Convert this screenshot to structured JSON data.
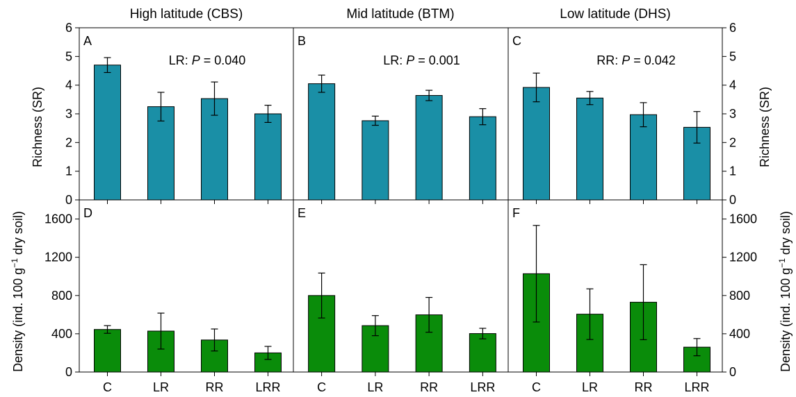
{
  "columns": [
    {
      "title": "High latitude (CBS)"
    },
    {
      "title": "Mid latitude (BTM)"
    },
    {
      "title": "Low latitude (DHS)"
    }
  ],
  "y_titles": {
    "top_left": "Richness (SR)",
    "top_right": "Richness (SR)",
    "bottom_left": "Density (ind. 100 g",
    "bottom_right": "Density (ind. 100 g",
    "sup": "−1",
    "tail": " dry soil)"
  },
  "colors": {
    "richness": "#1a8fa6",
    "density": "#0a8c0a",
    "frame": "#000000"
  },
  "chart_data": [
    {
      "panel": "A",
      "type": "bar",
      "annotation_label": "LR: ",
      "annotation_p": "P",
      "annotation_value": " = 0.040",
      "categories": [
        "C",
        "LR",
        "RR",
        "LRR"
      ],
      "values": [
        4.7,
        3.25,
        3.53,
        3.0
      ],
      "errors": [
        0.26,
        0.5,
        0.58,
        0.3
      ],
      "ylabel": "Richness (SR)",
      "ylim": [
        0,
        6
      ],
      "yticks": [
        "0",
        "1",
        "2",
        "3",
        "4",
        "5",
        "6"
      ]
    },
    {
      "panel": "B",
      "type": "bar",
      "annotation_label": "LR: ",
      "annotation_p": "P",
      "annotation_value": " = 0.001",
      "categories": [
        "C",
        "LR",
        "RR",
        "LRR"
      ],
      "values": [
        4.05,
        2.76,
        3.64,
        2.9
      ],
      "errors": [
        0.3,
        0.16,
        0.18,
        0.28
      ],
      "ylabel": "Richness (SR)",
      "ylim": [
        0,
        6
      ],
      "yticks": [
        "0",
        "1",
        "2",
        "3",
        "4",
        "5",
        "6"
      ]
    },
    {
      "panel": "C",
      "type": "bar",
      "annotation_label": "RR: ",
      "annotation_p": "P",
      "annotation_value": " = 0.042",
      "categories": [
        "C",
        "LR",
        "RR",
        "LRR"
      ],
      "values": [
        3.92,
        3.55,
        2.97,
        2.53
      ],
      "errors": [
        0.5,
        0.23,
        0.42,
        0.55
      ],
      "ylabel": "Richness (SR)",
      "ylim": [
        0,
        6
      ],
      "yticks": [
        "0",
        "1",
        "2",
        "3",
        "4",
        "5",
        "6"
      ]
    },
    {
      "panel": "D",
      "type": "bar",
      "categories": [
        "C",
        "LR",
        "RR",
        "LRR"
      ],
      "values": [
        445,
        428,
        335,
        200
      ],
      "errors": [
        40,
        188,
        115,
        68
      ],
      "ylabel": "Density (ind. 100 g−1 dry soil)",
      "ylim": [
        0,
        1800
      ],
      "yticks": [
        "0",
        "400",
        "800",
        "1200",
        "1600"
      ]
    },
    {
      "panel": "E",
      "type": "bar",
      "categories": [
        "C",
        "LR",
        "RR",
        "LRR"
      ],
      "values": [
        800,
        485,
        598,
        402
      ],
      "errors": [
        235,
        105,
        182,
        55
      ],
      "ylabel": "Density (ind. 100 g−1 dry soil)",
      "ylim": [
        0,
        1800
      ],
      "yticks": [
        "0",
        "400",
        "800",
        "1200",
        "1600"
      ]
    },
    {
      "panel": "F",
      "type": "bar",
      "categories": [
        "C",
        "LR",
        "RR",
        "LRR"
      ],
      "values": [
        1028,
        605,
        730,
        260
      ],
      "errors": [
        505,
        265,
        392,
        90
      ],
      "ylabel": "Density (ind. 100 g−1 dry soil)",
      "ylim": [
        0,
        1800
      ],
      "yticks": [
        "0",
        "400",
        "800",
        "1200",
        "1600"
      ]
    }
  ]
}
